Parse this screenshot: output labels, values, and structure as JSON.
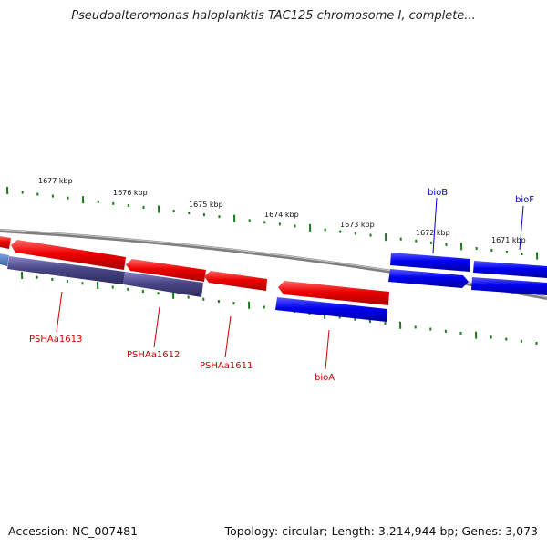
{
  "header": {
    "title": "Pseudoalteromonas haloplanktis TAC125 chromosome I, complete..."
  },
  "footer": {
    "accession": "Accession: NC_007481",
    "summary": "Topology: circular; Length: 3,214,944 bp; Genes: 3,073"
  },
  "ruler": {
    "labels": [
      "1677 kbp",
      "1676 kbp",
      "1675 kbp",
      "1674 kbp",
      "1673 kbp",
      "1672 kbp",
      "1671 kbp"
    ]
  },
  "genes": {
    "labels": [
      "PSHAa1613",
      "PSHAa1612",
      "PSHAa1611",
      "bioA",
      "bioB",
      "bioF"
    ]
  },
  "colors": {
    "forward_gene": "#0000ee",
    "reverse_gene": "#ee0000",
    "pseudo_gene": "#4a4685",
    "backbone": "#808080",
    "tick": "#1b7a1b",
    "label_red": "#cc0000",
    "label_blue": "#0000cc"
  }
}
